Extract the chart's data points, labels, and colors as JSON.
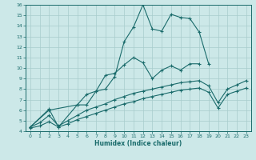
{
  "xlabel": "Humidex (Indice chaleur)",
  "ylabel": "",
  "bg_color": "#cce8e8",
  "line_color": "#1a6b6b",
  "grid_color": "#a8cccc",
  "xlim": [
    -0.5,
    23.5
  ],
  "ylim": [
    4,
    16
  ],
  "xticks": [
    0,
    1,
    2,
    3,
    4,
    5,
    6,
    7,
    8,
    9,
    10,
    11,
    12,
    13,
    14,
    15,
    16,
    17,
    18,
    19,
    20,
    21,
    22,
    23
  ],
  "yticks": [
    4,
    5,
    6,
    7,
    8,
    9,
    10,
    11,
    12,
    13,
    14,
    15,
    16
  ],
  "line1_x": [
    0,
    2,
    3,
    5,
    6,
    7,
    8,
    9,
    10,
    11,
    12,
    13,
    14,
    15,
    16,
    17,
    18
  ],
  "line1_y": [
    4.4,
    6.1,
    4.4,
    6.5,
    7.5,
    7.8,
    9.3,
    9.5,
    10.3,
    11.0,
    10.5,
    9.0,
    9.8,
    10.2,
    9.8,
    10.4,
    10.4
  ],
  "line2_x": [
    0,
    2,
    5,
    6,
    7,
    8,
    9,
    10,
    11,
    12,
    13,
    14,
    15,
    16,
    17,
    18,
    19
  ],
  "line2_y": [
    4.4,
    6.0,
    6.5,
    6.5,
    7.8,
    8.0,
    9.2,
    12.5,
    13.9,
    16.0,
    13.7,
    13.5,
    15.1,
    14.8,
    14.7,
    13.4,
    10.4
  ],
  "line3_x": [
    0,
    1,
    2,
    3,
    4,
    5,
    6,
    7,
    8,
    9,
    10,
    11,
    12,
    13,
    14,
    15,
    16,
    17,
    18,
    19,
    20,
    21,
    22,
    23
  ],
  "line3_y": [
    4.4,
    4.8,
    5.5,
    4.5,
    5.0,
    5.5,
    6.0,
    6.3,
    6.6,
    7.0,
    7.3,
    7.6,
    7.8,
    8.0,
    8.2,
    8.4,
    8.6,
    8.7,
    8.8,
    8.3,
    6.7,
    8.0,
    8.4,
    8.8
  ],
  "line4_x": [
    0,
    1,
    2,
    3,
    4,
    5,
    6,
    7,
    8,
    9,
    10,
    11,
    12,
    13,
    14,
    15,
    16,
    17,
    18,
    19,
    20,
    21,
    22,
    23
  ],
  "line4_y": [
    4.3,
    4.5,
    4.9,
    4.4,
    4.7,
    5.1,
    5.4,
    5.7,
    6.0,
    6.3,
    6.6,
    6.8,
    7.1,
    7.3,
    7.5,
    7.7,
    7.9,
    8.0,
    8.1,
    7.7,
    6.2,
    7.5,
    7.8,
    8.1
  ]
}
